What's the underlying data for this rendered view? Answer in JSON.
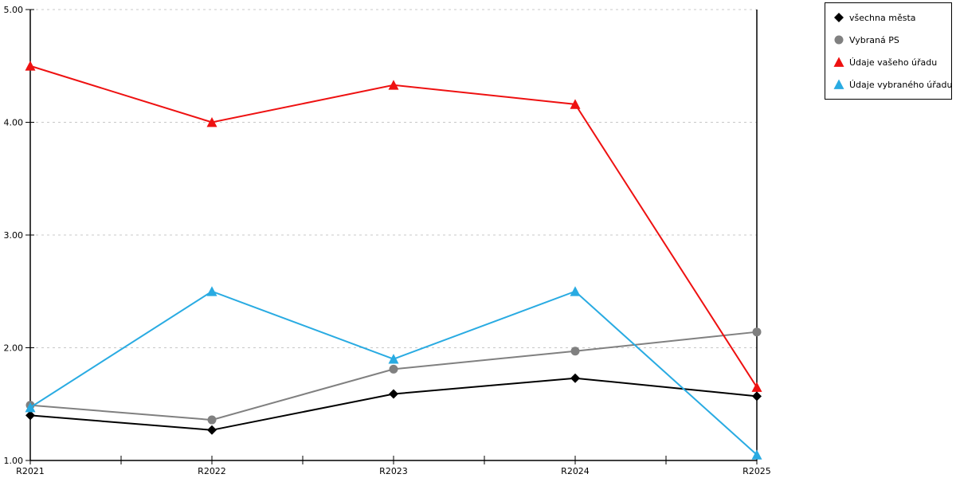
{
  "chart_data": {
    "type": "line",
    "categories": [
      "R2021",
      "R2022",
      "R2023",
      "R2024",
      "R2025"
    ],
    "series": [
      {
        "name": "všechna města",
        "marker": "diamond",
        "color": "#000000",
        "values": [
          1.4,
          1.27,
          1.59,
          1.73,
          1.57
        ]
      },
      {
        "name": "Vybraná PS",
        "marker": "circle",
        "color": "#808080",
        "values": [
          1.49,
          1.36,
          1.81,
          1.97,
          2.14
        ]
      },
      {
        "name": "Údaje vašeho úřadu",
        "marker": "triangle",
        "color": "#ee1111",
        "values": [
          4.5,
          4.0,
          4.33,
          4.16,
          1.65
        ]
      },
      {
        "name": "Údaje vybraného úřadu",
        "marker": "triangle",
        "color": "#29abe2",
        "values": [
          1.47,
          2.5,
          1.9,
          2.5,
          1.05
        ]
      }
    ],
    "title": "",
    "xlabel": "",
    "ylabel": "",
    "ylim": [
      1.0,
      5.0
    ],
    "y_tick_values": [
      5,
      4,
      3,
      2,
      1
    ],
    "y_tick_labels": [
      "5.00",
      "4.00",
      "3.00",
      "2.00",
      "1.00"
    ],
    "x_minor_ticks_per_interval": 2,
    "grid": "horizontal-dashed",
    "legend_position": "top-right"
  },
  "colors": {
    "axis": "#000000",
    "grid": "#c8c8c8",
    "background": "#ffffff",
    "text": "#000000"
  }
}
